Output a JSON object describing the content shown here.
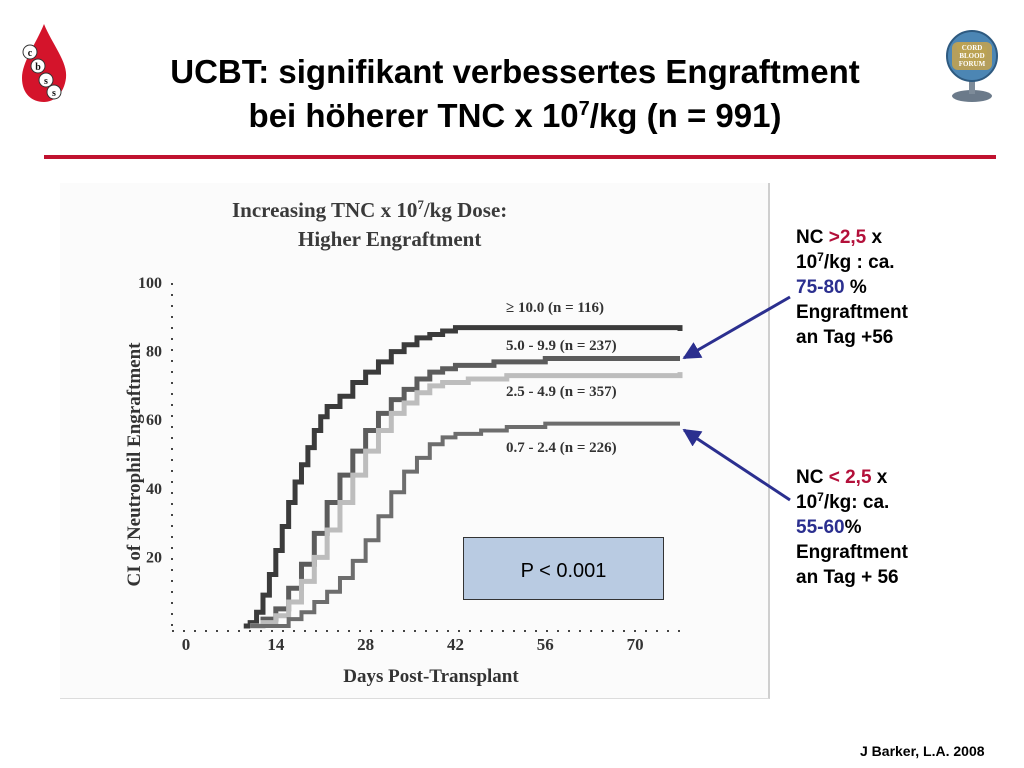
{
  "slide": {
    "title_line1": "UCBT: signifikant verbessertes Engraftment",
    "title_line2_pre": "bei  höherer TNC x 10",
    "title_line2_sup": "7",
    "title_line2_post": "/kg (n = 991)",
    "credit": "J Barker, L.A. 2008",
    "accent_color": "#c0122f",
    "logo_left_letters": [
      "c",
      "b",
      "s",
      "s"
    ],
    "logo_right_lines": [
      "CORD",
      "BLOOD",
      "FORUM"
    ]
  },
  "figure": {
    "title_line1_pre": "Increasing TNC x 10",
    "title_line1_sup": "7",
    "title_line1_post": "/kg Dose:",
    "title_line2": "Higher Engraftment",
    "p_value": "P < 0.001"
  },
  "note_upper": {
    "l1_pre": "NC ",
    "l1_red": ">2,5",
    "l1_post": " x",
    "l2_pre": "10",
    "l2_sup": "7",
    "l2_post": "/kg : ca.",
    "l3_blue": "75-80",
    "l3_post": " %",
    "l4": "Engraftment",
    "l5": "an Tag +56"
  },
  "note_lower": {
    "l1_pre": "NC ",
    "l1_red": "< 2,5",
    "l1_post": " x",
    "l2_pre": "10",
    "l2_sup": "7",
    "l2_post": "/kg: ca.",
    "l3_blue": "55-60",
    "l3_post": "%",
    "l4": "Engraftment",
    "l5": "an Tag + 56"
  },
  "chart_data": {
    "type": "line",
    "xlabel": "Days Post-Transplant",
    "ylabel": "CI of Neutrophil Engraftment",
    "xlim": [
      0,
      77
    ],
    "ylim": [
      0,
      100
    ],
    "x_ticks": [
      0,
      14,
      28,
      42,
      56,
      70
    ],
    "y_ticks": [
      20,
      40,
      60,
      80,
      100
    ],
    "grid": false,
    "legend": "labels beside each curve",
    "series": [
      {
        "name": "≥ 10.0 (n = 116)",
        "color": "#3b3b3b",
        "points": [
          [
            9,
            0
          ],
          [
            10,
            1
          ],
          [
            11,
            4
          ],
          [
            12,
            9
          ],
          [
            13,
            15
          ],
          [
            14,
            22
          ],
          [
            15,
            29
          ],
          [
            16,
            36
          ],
          [
            17,
            42
          ],
          [
            18,
            47
          ],
          [
            19,
            52
          ],
          [
            20,
            57
          ],
          [
            21,
            61
          ],
          [
            22,
            64
          ],
          [
            24,
            67
          ],
          [
            26,
            71
          ],
          [
            28,
            74
          ],
          [
            30,
            77
          ],
          [
            32,
            80
          ],
          [
            34,
            82
          ],
          [
            36,
            84
          ],
          [
            38,
            85
          ],
          [
            40,
            86
          ],
          [
            42,
            87
          ],
          [
            56,
            87
          ],
          [
            77,
            86
          ]
        ]
      },
      {
        "name": "5.0 - 9.9 (n = 237)",
        "color": "#5c5c5c",
        "points": [
          [
            10,
            0
          ],
          [
            12,
            2
          ],
          [
            14,
            5
          ],
          [
            16,
            11
          ],
          [
            18,
            18
          ],
          [
            20,
            27
          ],
          [
            22,
            36
          ],
          [
            24,
            44
          ],
          [
            26,
            51
          ],
          [
            28,
            57
          ],
          [
            30,
            62
          ],
          [
            32,
            66
          ],
          [
            34,
            69
          ],
          [
            36,
            72
          ],
          [
            38,
            74
          ],
          [
            40,
            75
          ],
          [
            42,
            76
          ],
          [
            48,
            77
          ],
          [
            56,
            78
          ],
          [
            77,
            78
          ]
        ]
      },
      {
        "name": "2.5 - 4.9 (n = 357)",
        "color": "#bdbdbd",
        "points": [
          [
            10,
            0
          ],
          [
            12,
            1
          ],
          [
            14,
            3
          ],
          [
            16,
            7
          ],
          [
            18,
            13
          ],
          [
            20,
            20
          ],
          [
            22,
            28
          ],
          [
            24,
            36
          ],
          [
            26,
            44
          ],
          [
            28,
            51
          ],
          [
            30,
            57
          ],
          [
            32,
            62
          ],
          [
            34,
            65
          ],
          [
            36,
            68
          ],
          [
            38,
            70
          ],
          [
            40,
            71
          ],
          [
            44,
            72
          ],
          [
            50,
            73
          ],
          [
            56,
            73
          ],
          [
            77,
            74
          ]
        ]
      },
      {
        "name": "0.7 - 2.4 (n = 226)",
        "color": "#6d6d6d",
        "points": [
          [
            10,
            0
          ],
          [
            14,
            0
          ],
          [
            16,
            2
          ],
          [
            18,
            4
          ],
          [
            20,
            7
          ],
          [
            22,
            10
          ],
          [
            24,
            14
          ],
          [
            26,
            19
          ],
          [
            28,
            25
          ],
          [
            30,
            32
          ],
          [
            32,
            39
          ],
          [
            34,
            45
          ],
          [
            36,
            49
          ],
          [
            38,
            53
          ],
          [
            40,
            55
          ],
          [
            42,
            56
          ],
          [
            46,
            57
          ],
          [
            50,
            58
          ],
          [
            56,
            59
          ],
          [
            77,
            59
          ]
        ]
      }
    ]
  }
}
